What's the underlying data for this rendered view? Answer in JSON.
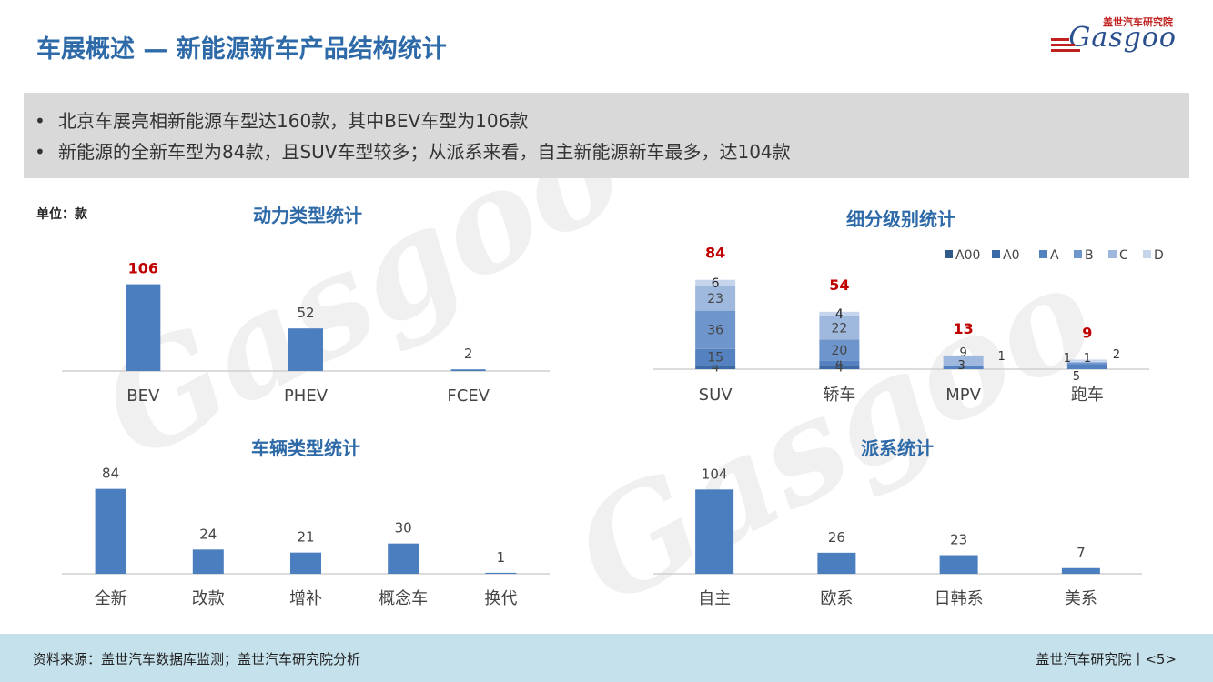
{
  "page": {
    "title": "车展概述 — 新能源新车产品结构统计",
    "logo_cn": "盖世汽车研究院",
    "logo_en": "Gasgoo",
    "bullets": [
      "北京车展亮相新能源车型达160款，其中BEV车型为106款",
      "新能源的全新车型为84款，且SUV车型较多；从派系来看，自主新能源新车最多，达104款"
    ],
    "unit": "单位：款",
    "footer_source": "资料来源：盖世汽车数据库监测；盖世汽车研究院分析",
    "footer_page": "盖世汽车研究院丨<5>"
  },
  "colors": {
    "accent": "#2e6aa8",
    "bar": "#4a7ebf",
    "highlight": "#c00000",
    "footer_bg": "#c5e1ec",
    "summary_bg": "#d9d9d9"
  },
  "chart_data": [
    {
      "type": "bar",
      "title": "动力类型统计",
      "categories": [
        "BEV",
        "PHEV",
        "FCEV"
      ],
      "values": [
        106,
        52,
        2
      ],
      "ylim": [
        0,
        120
      ]
    },
    {
      "type": "bar",
      "title": "细分级别统计",
      "stacked": true,
      "categories": [
        "SUV",
        "轿车",
        "MPV",
        "跑车"
      ],
      "totals": [
        84,
        54,
        13,
        9
      ],
      "legend_position": "top-right",
      "series": [
        {
          "name": "A00",
          "color": "#2f5a8a",
          "values": [
            0,
            0,
            0,
            0
          ]
        },
        {
          "name": "A0",
          "color": "#3b6aa6",
          "values": [
            4,
            4,
            0,
            0
          ]
        },
        {
          "name": "A",
          "color": "#5482c0",
          "values": [
            15,
            4,
            3,
            5
          ]
        },
        {
          "name": "B",
          "color": "#6e96cc",
          "values": [
            36,
            20,
            0,
            1
          ]
        },
        {
          "name": "C",
          "color": "#9fb8dd",
          "values": [
            23,
            22,
            9,
            1
          ]
        },
        {
          "name": "D",
          "color": "#c7d5ec",
          "values": [
            6,
            4,
            1,
            2
          ]
        }
      ],
      "ylim": [
        0,
        100
      ]
    },
    {
      "type": "bar",
      "title": "车辆类型统计",
      "categories": [
        "全新",
        "改款",
        "增补",
        "概念车",
        "换代"
      ],
      "values": [
        84,
        24,
        21,
        30,
        1
      ],
      "ylim": [
        0,
        90
      ]
    },
    {
      "type": "bar",
      "title": "派系统计",
      "categories": [
        "自主",
        "欧系",
        "日韩系",
        "美系"
      ],
      "values": [
        104,
        26,
        23,
        7
      ],
      "ylim": [
        0,
        110
      ]
    }
  ]
}
